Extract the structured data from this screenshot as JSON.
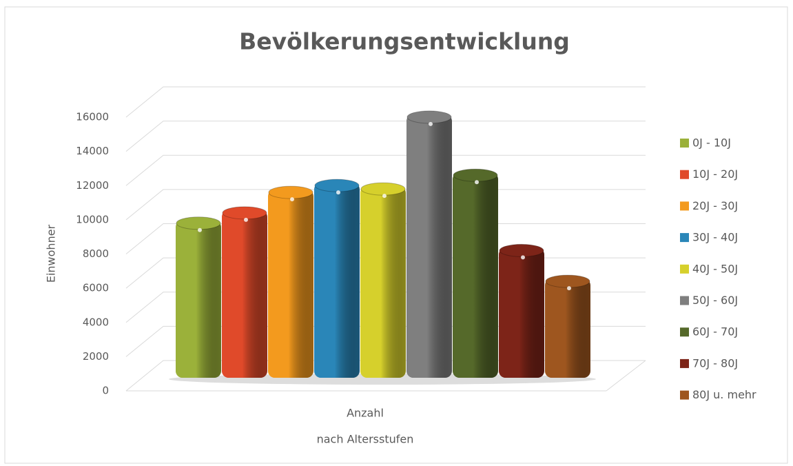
{
  "chart_data": {
    "type": "bar3d",
    "title": "Bevölkerungsentwicklung",
    "categories": [
      "Anzahl"
    ],
    "x_label": "nach Altersstufen",
    "y_label": "Einwohner",
    "ylim": [
      0,
      16000
    ],
    "yticks": [
      0,
      2000,
      4000,
      6000,
      8000,
      10000,
      12000,
      14000,
      16000
    ],
    "grid": true,
    "legend": "right",
    "series": [
      {
        "name": "0J - 10J",
        "color": "#9bb13a",
        "values": [
          9200
        ]
      },
      {
        "name": "10J - 20J",
        "color": "#e04a2a",
        "values": [
          9800
        ]
      },
      {
        "name": "20J - 30J",
        "color": "#f39a1e",
        "values": [
          11000
        ]
      },
      {
        "name": "30J - 40J",
        "color": "#2a86b8",
        "values": [
          11400
        ]
      },
      {
        "name": "40J - 50J",
        "color": "#d6d02c",
        "values": [
          11200
        ]
      },
      {
        "name": "50J - 60J",
        "color": "#7f7f7f",
        "values": [
          15400
        ]
      },
      {
        "name": "60J - 70J",
        "color": "#55692a",
        "values": [
          12000
        ]
      },
      {
        "name": "70J - 80J",
        "color": "#7d2418",
        "values": [
          7600
        ]
      },
      {
        "name": "80J u. mehr",
        "color": "#9e561f",
        "values": [
          5800
        ]
      }
    ]
  }
}
